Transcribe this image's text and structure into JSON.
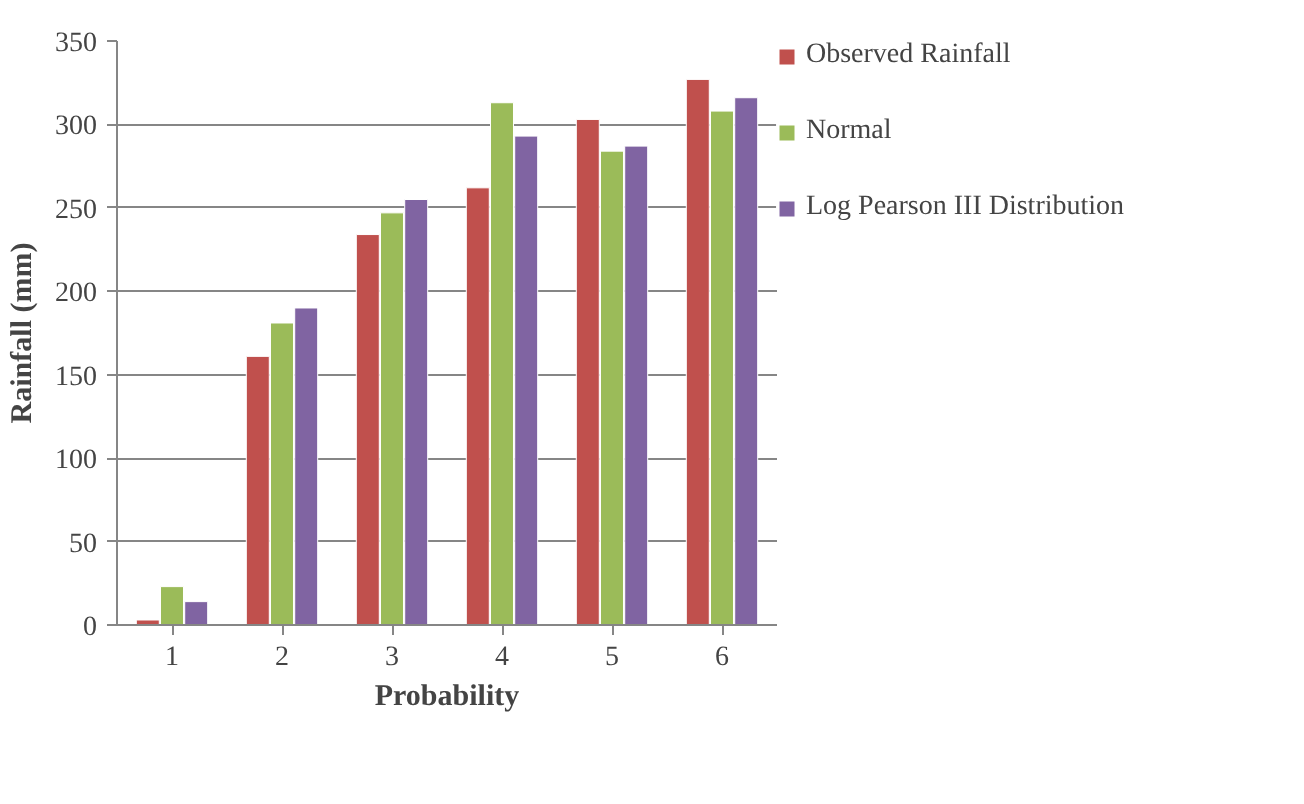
{
  "chart_data": {
    "type": "bar",
    "xlabel": "Probability",
    "ylabel": "Rainfall (mm)",
    "categories": [
      "1",
      "2",
      "3",
      "4",
      "5",
      "6"
    ],
    "series": [
      {
        "name": "Observed Rainfall",
        "color": "#c0504d",
        "values": [
          3,
          161,
          234,
          262,
          303,
          327
        ]
      },
      {
        "name": "Normal",
        "color": "#9bbb59",
        "values": [
          23,
          181,
          247,
          313,
          284,
          308
        ]
      },
      {
        "name": "Log Pearson III Distribution",
        "color": "#8064a2",
        "values": [
          14,
          190,
          255,
          293,
          287,
          316
        ]
      }
    ],
    "ylim": [
      0,
      350
    ],
    "yticks": [
      0,
      50,
      100,
      150,
      200,
      250,
      300,
      350
    ],
    "grid": "y",
    "legend": "right"
  }
}
